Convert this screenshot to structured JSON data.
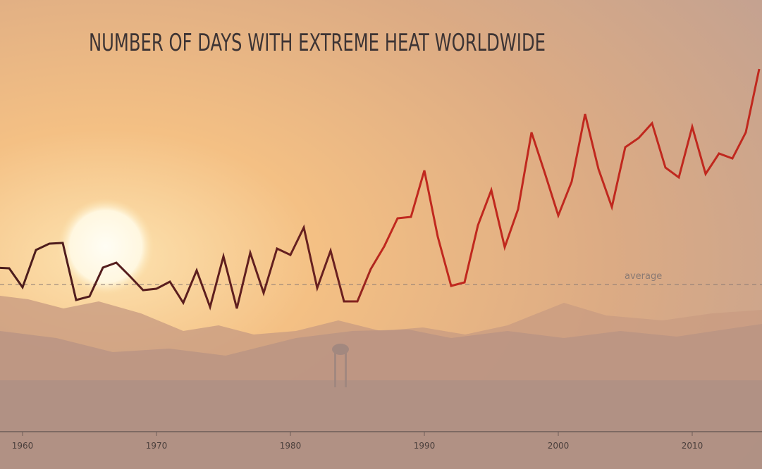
{
  "chart_data": {
    "type": "line",
    "title": "NUMBER OF DAYS WITH EXTREME HEAT WORLDWIDE",
    "x": [
      1958,
      1959,
      1960,
      1961,
      1962,
      1963,
      1964,
      1965,
      1966,
      1967,
      1968,
      1969,
      1970,
      1971,
      1972,
      1973,
      1974,
      1975,
      1976,
      1977,
      1978,
      1979,
      1980,
      1981,
      1982,
      1983,
      1984,
      1985,
      1986,
      1987,
      1988,
      1989,
      1990,
      1991,
      1992,
      1993,
      1994,
      1995,
      1996,
      1997,
      1998,
      1999,
      2000,
      2001,
      2002,
      2003,
      2004,
      2005,
      2006,
      2007,
      2008,
      2009,
      2010,
      2011,
      2012,
      2013,
      2014,
      2015
    ],
    "series": [
      {
        "color": "#c0281e",
        "values": [
          2.4,
          2.3,
          -0.4,
          4.9,
          5.8,
          5.9,
          -2.2,
          -1.7,
          2.4,
          3.1,
          1.2,
          -0.8,
          -0.6,
          0.4,
          -2.6,
          2.0,
          -3.2,
          4.0,
          -3.4,
          4.5,
          -1.2,
          5.1,
          4.2,
          8.1,
          -0.5,
          4.8,
          -2.4,
          -2.4,
          2.2,
          5.4,
          9.4,
          9.6,
          16.2,
          6.8,
          -0.2,
          0.3,
          8.4,
          13.4,
          5.3,
          10.7,
          21.6,
          15.8,
          9.8,
          14.6,
          24.2,
          16.4,
          11.0,
          19.5,
          20.8,
          22.9,
          16.6,
          15.2,
          22.4,
          15.7,
          18.6,
          17.9,
          21.6,
          30.6
        ]
      }
    ],
    "average": {
      "label": "average",
      "value": 0
    },
    "xlim": [
      1958.316,
      2015.21
    ],
    "xticks": [
      1960,
      1970,
      1980,
      1990,
      2000,
      2010
    ],
    "ylim": [
      -6,
      32
    ]
  }
}
